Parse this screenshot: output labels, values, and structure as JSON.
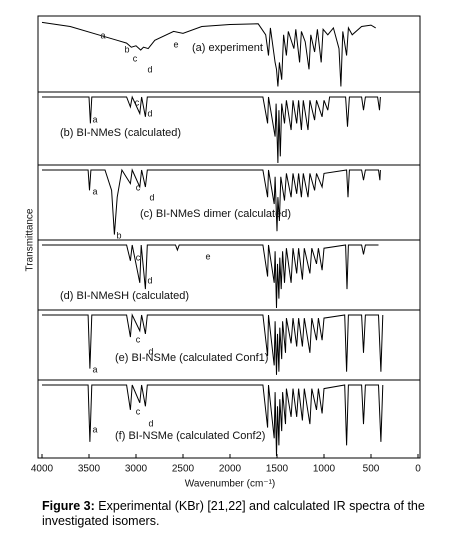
{
  "chart_data": {
    "type": "line",
    "x_label": "Wavenumber (cm⁻¹)",
    "y_label": "Transmittance",
    "xlim": [
      4000,
      0
    ],
    "xticks": [
      4000,
      3500,
      3000,
      2500,
      2000,
      1500,
      1000,
      500,
      0
    ],
    "ylim": [
      0,
      100
    ],
    "color": "#000000",
    "series": [
      {
        "name": "(a) experiment",
        "annotations": [
          "a",
          "b",
          "c",
          "d",
          "e"
        ],
        "x": [
          4000,
          3700,
          3400,
          3200,
          3100,
          3050,
          3000,
          2950,
          2920,
          2870,
          2800,
          2600,
          2500,
          2300,
          2000,
          1700,
          1620,
          1590,
          1570,
          1520,
          1505,
          1490,
          1475,
          1450,
          1430,
          1400,
          1380,
          1320,
          1300,
          1260,
          1240,
          1200,
          1160,
          1140,
          1100,
          1070,
          1030,
          1010,
          960,
          900,
          840,
          820,
          800,
          760,
          740,
          700,
          600,
          500,
          450
        ],
        "values": [
          98,
          92,
          80,
          72,
          68,
          62,
          64,
          58,
          62,
          60,
          72,
          85,
          82,
          92,
          95,
          96,
          80,
          50,
          90,
          40,
          30,
          5,
          40,
          15,
          80,
          50,
          85,
          60,
          88,
          40,
          85,
          70,
          30,
          80,
          55,
          88,
          40,
          88,
          80,
          90,
          60,
          5,
          85,
          50,
          90,
          80,
          92,
          94,
          90
        ]
      },
      {
        "name": "(b) BI-NMeS (calculated)",
        "annotations": [
          "a",
          "c",
          "d"
        ],
        "x": [
          4000,
          3500,
          3485,
          3470,
          3100,
          3060,
          3040,
          2960,
          2940,
          2900,
          2880,
          1650,
          1600,
          1590,
          1520,
          1510,
          1490,
          1480,
          1465,
          1450,
          1420,
          1400,
          1350,
          1330,
          1290,
          1270,
          1240,
          1220,
          1170,
          1150,
          1100,
          1080,
          1020,
          1000,
          960,
          940,
          770,
          750,
          730,
          600,
          580,
          560,
          430,
          410,
          400
        ],
        "values": [
          100,
          100,
          60,
          100,
          100,
          85,
          100,
          75,
          100,
          70,
          100,
          100,
          60,
          100,
          40,
          90,
          0,
          80,
          10,
          90,
          60,
          95,
          50,
          95,
          60,
          95,
          50,
          95,
          50,
          95,
          65,
          95,
          70,
          95,
          80,
          100,
          100,
          55,
          100,
          100,
          80,
          100,
          100,
          80,
          100
        ]
      },
      {
        "name": "(c) BI-NMeS dimer (calculated)",
        "annotations": [
          "a",
          "b",
          "c",
          "d"
        ],
        "x": [
          4000,
          3510,
          3495,
          3480,
          3330,
          3260,
          3230,
          3200,
          3150,
          3060,
          3040,
          2960,
          2940,
          2900,
          2880,
          1650,
          1600,
          1590,
          1530,
          1520,
          1500,
          1490,
          1475,
          1460,
          1420,
          1400,
          1350,
          1330,
          1290,
          1270,
          1240,
          1220,
          1170,
          1150,
          1100,
          1080,
          1020,
          1000,
          760,
          745,
          730,
          600,
          580,
          560,
          420,
          405,
          400
        ],
        "values": [
          100,
          100,
          70,
          100,
          100,
          70,
          5,
          60,
          100,
          80,
          100,
          75,
          100,
          75,
          100,
          100,
          60,
          100,
          50,
          90,
          10,
          60,
          25,
          90,
          55,
          95,
          60,
          95,
          65,
          95,
          60,
          95,
          60,
          95,
          70,
          95,
          75,
          95,
          100,
          60,
          100,
          100,
          85,
          100,
          100,
          85,
          100
        ]
      },
      {
        "name": "(d) BI-NMeSH (calculated)",
        "annotations": [
          "c",
          "d",
          "e"
        ],
        "x": [
          4000,
          3100,
          3060,
          3040,
          2960,
          2945,
          2900,
          2880,
          2580,
          2560,
          2540,
          1650,
          1600,
          1590,
          1530,
          1520,
          1505,
          1495,
          1480,
          1470,
          1455,
          1440,
          1420,
          1400,
          1350,
          1330,
          1290,
          1270,
          1230,
          1210,
          1150,
          1130,
          1080,
          1060,
          1020,
          1000,
          770,
          755,
          740,
          600,
          580,
          560,
          420
        ],
        "values": [
          100,
          100,
          75,
          100,
          40,
          100,
          30,
          100,
          100,
          92,
          100,
          100,
          50,
          100,
          40,
          90,
          0,
          70,
          15,
          80,
          30,
          90,
          40,
          95,
          40,
          95,
          55,
          95,
          45,
          95,
          55,
          95,
          70,
          95,
          60,
          95,
          100,
          30,
          100,
          100,
          85,
          100,
          100
        ]
      },
      {
        "name": "(e) BI-NSMe (calculated Conf1)",
        "annotations": [
          "a",
          "c",
          "d"
        ],
        "x": [
          4000,
          3510,
          3490,
          3470,
          3100,
          3060,
          3040,
          2960,
          2940,
          2900,
          2880,
          1650,
          1600,
          1590,
          1530,
          1520,
          1505,
          1495,
          1480,
          1470,
          1450,
          1440,
          1410,
          1400,
          1350,
          1330,
          1290,
          1270,
          1230,
          1210,
          1150,
          1130,
          1080,
          1060,
          1020,
          1000,
          780,
          760,
          740,
          600,
          580,
          560,
          420,
          395,
          375
        ],
        "values": [
          100,
          100,
          15,
          100,
          100,
          65,
          100,
          75,
          100,
          70,
          100,
          100,
          35,
          100,
          20,
          90,
          5,
          70,
          10,
          80,
          30,
          90,
          40,
          95,
          55,
          95,
          50,
          95,
          50,
          95,
          40,
          95,
          60,
          95,
          60,
          95,
          100,
          10,
          100,
          100,
          40,
          100,
          100,
          10,
          100
        ]
      },
      {
        "name": "(f) BI-NSMe (calculated Conf2)",
        "annotations": [
          "a",
          "c",
          "d"
        ],
        "x": [
          4000,
          3510,
          3490,
          3470,
          3100,
          3060,
          3040,
          2960,
          2940,
          2900,
          2880,
          1650,
          1600,
          1590,
          1530,
          1520,
          1505,
          1495,
          1480,
          1470,
          1450,
          1440,
          1410,
          1400,
          1350,
          1330,
          1290,
          1270,
          1230,
          1210,
          1150,
          1130,
          1080,
          1060,
          1020,
          1000,
          780,
          760,
          740,
          600,
          580,
          560,
          420,
          395,
          375
        ],
        "values": [
          100,
          100,
          20,
          100,
          100,
          65,
          100,
          75,
          100,
          70,
          100,
          100,
          40,
          100,
          25,
          90,
          0,
          70,
          15,
          80,
          35,
          90,
          45,
          95,
          55,
          95,
          55,
          95,
          50,
          95,
          45,
          95,
          65,
          95,
          60,
          95,
          100,
          15,
          100,
          100,
          45,
          100,
          100,
          20,
          100
        ]
      }
    ]
  },
  "caption": {
    "label": "Figure 3:",
    "text": "Experimental (KBr) [21,22] and calculated IR spectra of the investigated isomers."
  }
}
